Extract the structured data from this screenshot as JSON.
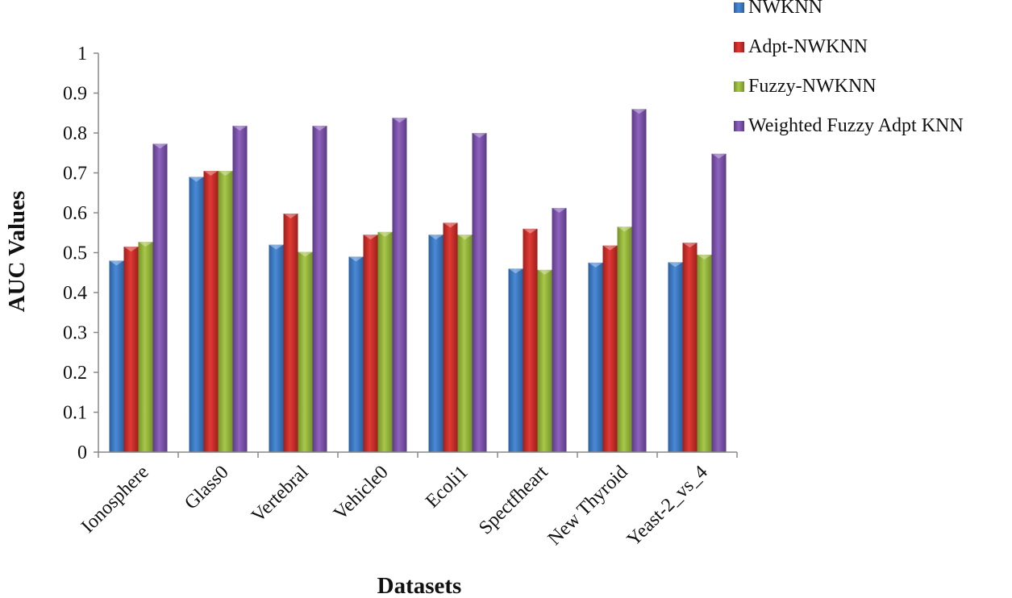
{
  "chart_data": {
    "type": "bar",
    "title": "",
    "xlabel": "Datasets",
    "ylabel": "AUC Values",
    "ylim": [
      0,
      1
    ],
    "yticks": [
      "0",
      "0.1",
      "0.2",
      "0.3",
      "0.4",
      "0.5",
      "0.6",
      "0.7",
      "0.8",
      "0.9",
      "1"
    ],
    "grid": false,
    "legend_position": "top-right",
    "categories": [
      "Ionosphere",
      "Glass0",
      "Vertebral",
      "Vehicle0",
      "Ecoli1",
      "Spectfheart",
      "New Thyroid",
      "Yeast-2_vs_4"
    ],
    "series": [
      {
        "name": "NWKNN",
        "color": "#3d7cc9",
        "values": [
          0.48,
          0.69,
          0.52,
          0.49,
          0.545,
          0.46,
          0.475,
          0.476
        ]
      },
      {
        "name": "Adpt-NWKNN",
        "color": "#c9302c",
        "values": [
          0.515,
          0.705,
          0.598,
          0.545,
          0.575,
          0.56,
          0.518,
          0.525
        ]
      },
      {
        "name": "Fuzzy-NWKNN",
        "color": "#9bbb3b",
        "values": [
          0.527,
          0.705,
          0.502,
          0.552,
          0.545,
          0.457,
          0.565,
          0.495
        ]
      },
      {
        "name": "Weighted Fuzzy Adpt KNN",
        "color": "#7b4fa8",
        "values": [
          0.773,
          0.818,
          0.818,
          0.838,
          0.8,
          0.612,
          0.86,
          0.748
        ]
      }
    ]
  }
}
